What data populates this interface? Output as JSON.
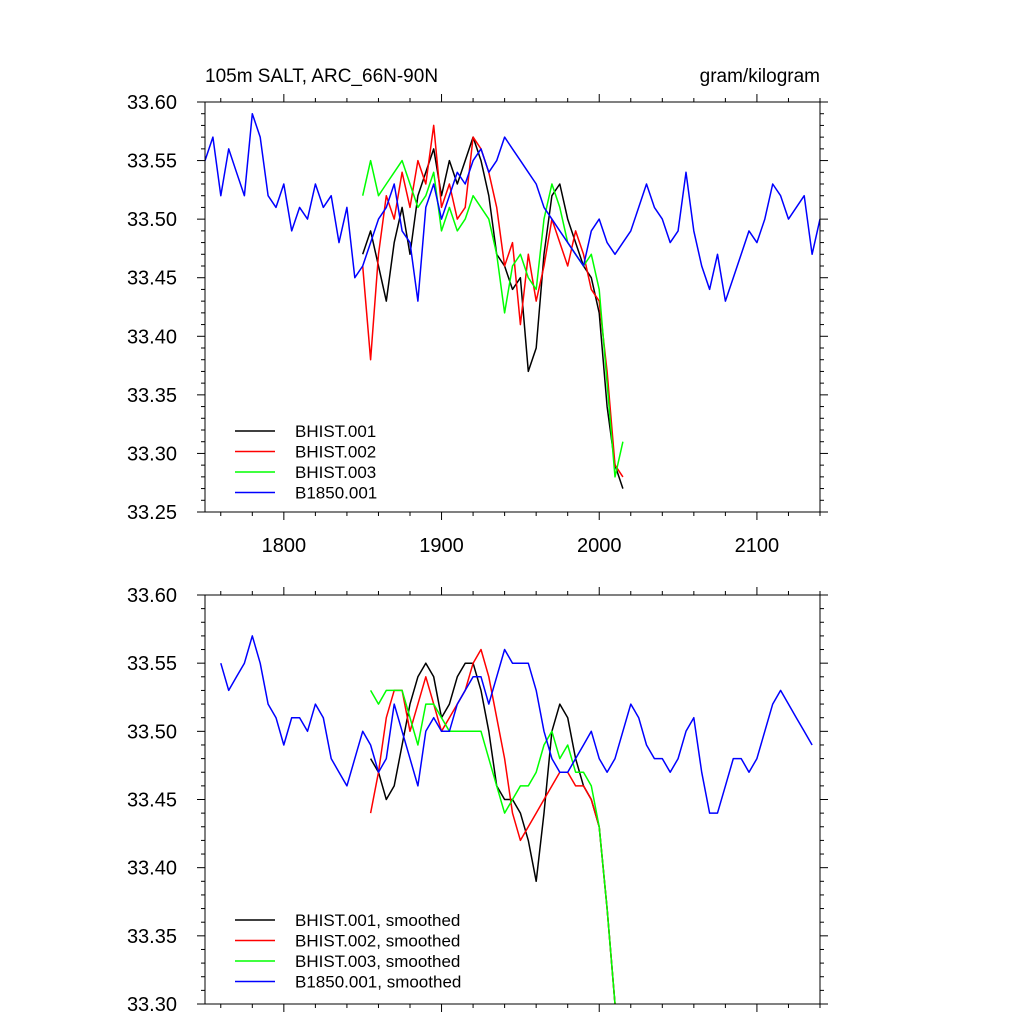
{
  "chart_data": [
    {
      "type": "line",
      "title": "105m SALT, ARC_66N-90N",
      "units": "gram/kilogram",
      "xlim": [
        1750,
        2140
      ],
      "ylim": [
        33.25,
        33.6
      ],
      "x_ticks": [
        1800,
        1900,
        2000,
        2100
      ],
      "x_tick_labels": [
        "1800",
        "1900",
        "2000",
        "2100"
      ],
      "y_ticks": [
        33.25,
        33.3,
        33.35,
        33.4,
        33.45,
        33.5,
        33.55,
        33.6
      ],
      "y_tick_labels": [
        "33.25",
        "33.30",
        "33.35",
        "33.40",
        "33.45",
        "33.50",
        "33.55",
        "33.60"
      ],
      "legend_position": "bottom-left",
      "series": [
        {
          "name": "BHIST.001",
          "color": "#000000",
          "x": [
            1850,
            1855,
            1860,
            1865,
            1870,
            1875,
            1880,
            1885,
            1890,
            1895,
            1900,
            1905,
            1910,
            1915,
            1920,
            1925,
            1930,
            1935,
            1940,
            1945,
            1950,
            1955,
            1960,
            1965,
            1970,
            1975,
            1980,
            1985,
            1990,
            1995,
            2000,
            2005,
            2010,
            2015
          ],
          "y": [
            33.47,
            33.49,
            33.46,
            33.43,
            33.48,
            33.51,
            33.47,
            33.52,
            33.54,
            33.56,
            33.52,
            33.55,
            33.53,
            33.55,
            33.57,
            33.55,
            33.52,
            33.47,
            33.46,
            33.44,
            33.45,
            33.37,
            33.39,
            33.47,
            33.52,
            33.53,
            33.5,
            33.48,
            33.46,
            33.45,
            33.42,
            33.34,
            33.29,
            33.27
          ]
        },
        {
          "name": "BHIST.002",
          "color": "#ff0000",
          "x": [
            1850,
            1855,
            1860,
            1865,
            1870,
            1875,
            1880,
            1885,
            1890,
            1895,
            1900,
            1905,
            1910,
            1915,
            1920,
            1925,
            1930,
            1935,
            1940,
            1945,
            1950,
            1955,
            1960,
            1965,
            1970,
            1975,
            1980,
            1985,
            1990,
            1995,
            2000,
            2005,
            2010,
            2015
          ],
          "y": [
            33.46,
            33.38,
            33.47,
            33.52,
            33.5,
            33.54,
            33.51,
            33.55,
            33.53,
            33.58,
            33.51,
            33.53,
            33.5,
            33.51,
            33.57,
            33.56,
            33.54,
            33.51,
            33.46,
            33.48,
            33.41,
            33.47,
            33.43,
            33.46,
            33.5,
            33.48,
            33.46,
            33.49,
            33.47,
            33.44,
            33.43,
            33.37,
            33.29,
            33.28
          ]
        },
        {
          "name": "BHIST.003",
          "color": "#00ff00",
          "x": [
            1850,
            1855,
            1860,
            1865,
            1870,
            1875,
            1880,
            1885,
            1890,
            1895,
            1900,
            1905,
            1910,
            1915,
            1920,
            1925,
            1930,
            1935,
            1940,
            1945,
            1950,
            1955,
            1960,
            1965,
            1970,
            1975,
            1980,
            1985,
            1990,
            1995,
            2000,
            2005,
            2010,
            2015
          ],
          "y": [
            33.52,
            33.55,
            33.52,
            33.53,
            33.54,
            33.55,
            33.53,
            33.51,
            33.52,
            33.54,
            33.49,
            33.51,
            33.49,
            33.5,
            33.52,
            33.51,
            33.5,
            33.47,
            33.42,
            33.46,
            33.47,
            33.45,
            33.44,
            33.5,
            33.53,
            33.51,
            33.48,
            33.47,
            33.46,
            33.47,
            33.44,
            33.36,
            33.28,
            33.31
          ]
        },
        {
          "name": "B1850.001",
          "color": "#0000ff",
          "x": [
            1750,
            1755,
            1760,
            1765,
            1770,
            1775,
            1780,
            1785,
            1790,
            1795,
            1800,
            1805,
            1810,
            1815,
            1820,
            1825,
            1830,
            1835,
            1840,
            1845,
            1850,
            1855,
            1860,
            1865,
            1870,
            1875,
            1880,
            1885,
            1890,
            1895,
            1900,
            1905,
            1910,
            1915,
            1920,
            1925,
            1930,
            1935,
            1940,
            1945,
            1950,
            1955,
            1960,
            1965,
            1970,
            1975,
            1980,
            1985,
            1990,
            1995,
            2000,
            2005,
            2010,
            2015,
            2020,
            2025,
            2030,
            2035,
            2040,
            2045,
            2050,
            2055,
            2060,
            2065,
            2070,
            2075,
            2080,
            2085,
            2090,
            2095,
            2100,
            2105,
            2110,
            2115,
            2120,
            2125,
            2130,
            2135,
            2140
          ],
          "y": [
            33.55,
            33.57,
            33.52,
            33.56,
            33.54,
            33.52,
            33.59,
            33.57,
            33.52,
            33.51,
            33.53,
            33.49,
            33.51,
            33.5,
            33.53,
            33.51,
            33.52,
            33.48,
            33.51,
            33.45,
            33.46,
            33.48,
            33.5,
            33.51,
            33.53,
            33.49,
            33.48,
            33.43,
            33.51,
            33.53,
            33.5,
            33.52,
            33.54,
            33.53,
            33.55,
            33.56,
            33.54,
            33.55,
            33.57,
            33.56,
            33.55,
            33.54,
            33.53,
            33.51,
            33.5,
            33.49,
            33.48,
            33.47,
            33.46,
            33.49,
            33.5,
            33.48,
            33.47,
            33.48,
            33.49,
            33.51,
            33.53,
            33.51,
            33.5,
            33.48,
            33.49,
            33.54,
            33.49,
            33.46,
            33.44,
            33.47,
            33.43,
            33.45,
            33.47,
            33.49,
            33.48,
            33.5,
            33.53,
            33.52,
            33.5,
            33.51,
            33.52,
            33.47,
            33.5
          ]
        }
      ]
    },
    {
      "type": "line",
      "title": "",
      "xlim": [
        1750,
        2140
      ],
      "ylim": [
        33.3,
        33.6
      ],
      "x_ticks": [
        1800,
        1900,
        2000,
        2100
      ],
      "x_tick_labels": [],
      "y_ticks": [
        33.3,
        33.35,
        33.4,
        33.45,
        33.5,
        33.55,
        33.6
      ],
      "y_tick_labels": [
        "33.30",
        "33.35",
        "33.40",
        "33.45",
        "33.50",
        "33.55",
        "33.60"
      ],
      "legend_position": "bottom-left",
      "series": [
        {
          "name": "BHIST.001, smoothed",
          "color": "#000000",
          "x": [
            1855,
            1860,
            1865,
            1870,
            1875,
            1880,
            1885,
            1890,
            1895,
            1900,
            1905,
            1910,
            1915,
            1920,
            1925,
            1930,
            1935,
            1940,
            1945,
            1950,
            1955,
            1960,
            1965,
            1970,
            1975,
            1980,
            1985,
            1990,
            1995,
            2000,
            2005,
            2010
          ],
          "y": [
            33.48,
            33.47,
            33.45,
            33.46,
            33.49,
            33.52,
            33.54,
            33.55,
            33.54,
            33.51,
            33.52,
            33.54,
            33.55,
            33.55,
            33.53,
            33.5,
            33.46,
            33.45,
            33.45,
            33.44,
            33.42,
            33.39,
            33.44,
            33.5,
            33.52,
            33.51,
            33.48,
            33.46,
            33.45,
            33.43,
            33.37,
            33.3
          ]
        },
        {
          "name": "BHIST.002, smoothed",
          "color": "#ff0000",
          "x": [
            1855,
            1860,
            1865,
            1870,
            1875,
            1880,
            1885,
            1890,
            1895,
            1900,
            1905,
            1910,
            1915,
            1920,
            1925,
            1930,
            1935,
            1940,
            1945,
            1950,
            1955,
            1960,
            1965,
            1970,
            1975,
            1980,
            1985,
            1990,
            1995,
            2000,
            2005,
            2010
          ],
          "y": [
            33.44,
            33.47,
            33.51,
            33.53,
            33.53,
            33.5,
            33.52,
            33.54,
            33.52,
            33.5,
            33.51,
            33.52,
            33.53,
            33.55,
            33.56,
            33.54,
            33.51,
            33.48,
            33.44,
            33.42,
            33.43,
            33.44,
            33.45,
            33.46,
            33.47,
            33.47,
            33.46,
            33.46,
            33.45,
            33.43,
            33.37,
            33.3
          ]
        },
        {
          "name": "BHIST.003, smoothed",
          "color": "#00ff00",
          "x": [
            1855,
            1860,
            1865,
            1870,
            1875,
            1880,
            1885,
            1890,
            1895,
            1900,
            1905,
            1910,
            1915,
            1920,
            1925,
            1930,
            1935,
            1940,
            1945,
            1950,
            1955,
            1960,
            1965,
            1970,
            1975,
            1980,
            1985,
            1990,
            1995,
            2000,
            2005,
            2010
          ],
          "y": [
            33.53,
            33.52,
            33.53,
            33.53,
            33.53,
            33.51,
            33.49,
            33.52,
            33.52,
            33.51,
            33.5,
            33.5,
            33.5,
            33.5,
            33.5,
            33.48,
            33.46,
            33.44,
            33.45,
            33.46,
            33.46,
            33.47,
            33.49,
            33.5,
            33.48,
            33.49,
            33.47,
            33.47,
            33.46,
            33.43,
            33.37,
            33.3
          ]
        },
        {
          "name": "B1850.001, smoothed",
          "color": "#0000ff",
          "x": [
            1760,
            1765,
            1770,
            1775,
            1780,
            1785,
            1790,
            1795,
            1800,
            1805,
            1810,
            1815,
            1820,
            1825,
            1830,
            1835,
            1840,
            1845,
            1850,
            1855,
            1860,
            1865,
            1870,
            1875,
            1880,
            1885,
            1890,
            1895,
            1900,
            1905,
            1910,
            1915,
            1920,
            1925,
            1930,
            1935,
            1940,
            1945,
            1950,
            1955,
            1960,
            1965,
            1970,
            1975,
            1980,
            1985,
            1990,
            1995,
            2000,
            2005,
            2010,
            2015,
            2020,
            2025,
            2030,
            2035,
            2040,
            2045,
            2050,
            2055,
            2060,
            2065,
            2070,
            2075,
            2080,
            2085,
            2090,
            2095,
            2100,
            2105,
            2110,
            2115,
            2120,
            2125,
            2130,
            2135
          ],
          "y": [
            33.55,
            33.53,
            33.54,
            33.55,
            33.57,
            33.55,
            33.52,
            33.51,
            33.49,
            33.51,
            33.51,
            33.5,
            33.52,
            33.51,
            33.48,
            33.47,
            33.46,
            33.48,
            33.5,
            33.49,
            33.47,
            33.48,
            33.52,
            33.5,
            33.48,
            33.46,
            33.5,
            33.51,
            33.5,
            33.5,
            33.52,
            33.53,
            33.54,
            33.54,
            33.52,
            33.54,
            33.56,
            33.55,
            33.55,
            33.55,
            33.53,
            33.5,
            33.48,
            33.47,
            33.47,
            33.48,
            33.49,
            33.5,
            33.48,
            33.47,
            33.48,
            33.5,
            33.52,
            33.51,
            33.49,
            33.48,
            33.48,
            33.47,
            33.48,
            33.5,
            33.51,
            33.47,
            33.44,
            33.44,
            33.46,
            33.48,
            33.48,
            33.47,
            33.48,
            33.5,
            33.52,
            33.53,
            33.52,
            33.51,
            33.5,
            33.49
          ]
        }
      ]
    }
  ]
}
